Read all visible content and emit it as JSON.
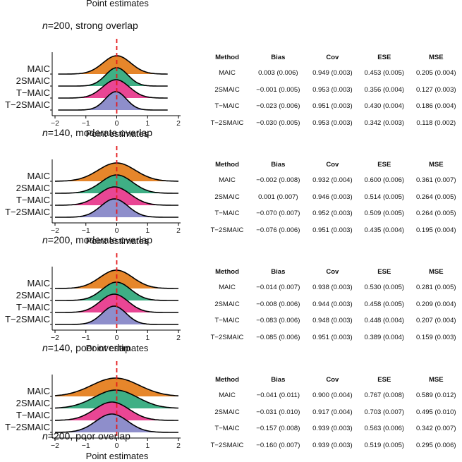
{
  "page": {
    "top_label": "Point estimates",
    "bottom_title_n": "200",
    "bottom_title_rest": ", poor overlap"
  },
  "colors": {
    "MAIC": "#E6862B",
    "2SMAIC": "#3FAF85",
    "T-MAIC": "#E94694",
    "T-2SMAIC": "#8E8ECB",
    "reference": "#E41A1C"
  },
  "table_headers": [
    "Method",
    "Bias",
    "Cov",
    "ESE",
    "MSE"
  ],
  "chart_data": [
    {
      "type": "ridgeline",
      "title_n": "200",
      "title_rest": ", strong overlap",
      "xlabel": "Point estimates",
      "xlim": [
        -2.2,
        2.2
      ],
      "xticks": [
        "−2",
        "−1",
        "0",
        "1",
        "2"
      ],
      "reference_x": 0,
      "methods": [
        "MAIC",
        "2SMAIC",
        "T−MAIC",
        "T−2SMAIC"
      ],
      "series": [
        {
          "name": "MAIC",
          "mean": 0.003,
          "sd": 0.45,
          "range": [
            -1.9,
            1.65
          ]
        },
        {
          "name": "2SMAIC",
          "mean": -0.001,
          "sd": 0.36,
          "range": [
            -1.9,
            1.65
          ]
        },
        {
          "name": "T−MAIC",
          "mean": -0.023,
          "sd": 0.43,
          "range": [
            -1.9,
            1.65
          ]
        },
        {
          "name": "T−2SMAIC",
          "mean": -0.03,
          "sd": 0.34,
          "range": [
            -1.9,
            1.65
          ]
        }
      ],
      "table": [
        [
          "MAIC",
          "0.003 (0.006)",
          "0.949 (0.003)",
          "0.453 (0.005)",
          "0.205 (0.004)"
        ],
        [
          "2SMAIC",
          "−0.001 (0.005)",
          "0.953 (0.003)",
          "0.356 (0.004)",
          "0.127 (0.003)"
        ],
        [
          "T−MAIC",
          "−0.023 (0.006)",
          "0.951 (0.003)",
          "0.430 (0.004)",
          "0.186 (0.004)"
        ],
        [
          "T−2SMAIC",
          "−0.030 (0.005)",
          "0.953 (0.003)",
          "0.342 (0.003)",
          "0.118 (0.002)"
        ]
      ]
    },
    {
      "type": "ridgeline",
      "title_n": "140",
      "title_rest": ", moderate overlap",
      "xlabel": "Point estimates",
      "xlim": [
        -2.2,
        2.2
      ],
      "xticks": [
        "−2",
        "−1",
        "0",
        "1",
        "2"
      ],
      "reference_x": 0,
      "methods": [
        "MAIC",
        "2SMAIC",
        "T−MAIC",
        "T−2SMAIC"
      ],
      "series": [
        {
          "name": "MAIC",
          "mean": -0.002,
          "sd": 0.6,
          "range": [
            -2.0,
            2.0
          ]
        },
        {
          "name": "2SMAIC",
          "mean": 0.001,
          "sd": 0.51,
          "range": [
            -2.0,
            2.0
          ]
        },
        {
          "name": "T−MAIC",
          "mean": -0.07,
          "sd": 0.51,
          "range": [
            -2.0,
            2.0
          ]
        },
        {
          "name": "T−2SMAIC",
          "mean": -0.076,
          "sd": 0.44,
          "range": [
            -2.0,
            2.0
          ]
        }
      ],
      "table": [
        [
          "MAIC",
          "−0.002 (0.008)",
          "0.932 (0.004)",
          "0.600 (0.006)",
          "0.361 (0.007)"
        ],
        [
          "2SMAIC",
          "0.001 (0.007)",
          "0.946 (0.003)",
          "0.514 (0.005)",
          "0.264 (0.005)"
        ],
        [
          "T−MAIC",
          "−0.070 (0.007)",
          "0.952 (0.003)",
          "0.509 (0.005)",
          "0.264 (0.005)"
        ],
        [
          "T−2SMAIC",
          "−0.076 (0.006)",
          "0.951 (0.003)",
          "0.435 (0.004)",
          "0.195 (0.004)"
        ]
      ]
    },
    {
      "type": "ridgeline",
      "title_n": "200",
      "title_rest": ", moderate overlap",
      "xlabel": "Point estimates",
      "xlim": [
        -2.2,
        2.2
      ],
      "xticks": [
        "−2",
        "−1",
        "0",
        "1",
        "2"
      ],
      "reference_x": 0,
      "methods": [
        "MAIC",
        "2SMAIC",
        "T−MAIC",
        "T−2SMAIC"
      ],
      "series": [
        {
          "name": "MAIC",
          "mean": -0.014,
          "sd": 0.53,
          "range": [
            -2.0,
            2.0
          ]
        },
        {
          "name": "2SMAIC",
          "mean": -0.008,
          "sd": 0.46,
          "range": [
            -2.0,
            2.0
          ]
        },
        {
          "name": "T−MAIC",
          "mean": -0.083,
          "sd": 0.45,
          "range": [
            -2.0,
            2.0
          ]
        },
        {
          "name": "T−2SMAIC",
          "mean": -0.085,
          "sd": 0.39,
          "range": [
            -2.0,
            2.0
          ]
        }
      ],
      "table": [
        [
          "MAIC",
          "−0.014 (0.007)",
          "0.938 (0.003)",
          "0.530 (0.005)",
          "0.281 (0.005)"
        ],
        [
          "2SMAIC",
          "−0.008 (0.006)",
          "0.944 (0.003)",
          "0.458 (0.005)",
          "0.209 (0.004)"
        ],
        [
          "T−MAIC",
          "−0.083 (0.006)",
          "0.948 (0.003)",
          "0.448 (0.004)",
          "0.207 (0.004)"
        ],
        [
          "T−2SMAIC",
          "−0.085 (0.006)",
          "0.951 (0.003)",
          "0.389 (0.004)",
          "0.159 (0.003)"
        ]
      ]
    },
    {
      "type": "ridgeline",
      "title_n": "140",
      "title_rest": ", poor overlap",
      "xlabel": "Point estimates",
      "xlim": [
        -2.2,
        2.2
      ],
      "xticks": [
        "−2",
        "−1",
        "0",
        "1",
        "2"
      ],
      "reference_x": 0,
      "methods": [
        "MAIC",
        "2SMAIC",
        "T−MAIC",
        "T−2SMAIC"
      ],
      "series": [
        {
          "name": "MAIC",
          "mean": -0.041,
          "sd": 0.77,
          "range": [
            -2.0,
            2.0
          ]
        },
        {
          "name": "2SMAIC",
          "mean": -0.031,
          "sd": 0.7,
          "range": [
            -2.0,
            2.0
          ]
        },
        {
          "name": "T−MAIC",
          "mean": -0.157,
          "sd": 0.56,
          "range": [
            -2.0,
            2.0
          ]
        },
        {
          "name": "T−2SMAIC",
          "mean": -0.16,
          "sd": 0.52,
          "range": [
            -2.0,
            2.0
          ]
        }
      ],
      "table": [
        [
          "MAIC",
          "−0.041 (0.011)",
          "0.900 (0.004)",
          "0.767 (0.008)",
          "0.589 (0.012)"
        ],
        [
          "2SMAIC",
          "−0.031 (0.010)",
          "0.917 (0.004)",
          "0.703 (0.007)",
          "0.495 (0.010)"
        ],
        [
          "T−MAIC",
          "−0.157 (0.008)",
          "0.939 (0.003)",
          "0.563 (0.006)",
          "0.342 (0.007)"
        ],
        [
          "T−2SMAIC",
          "−0.160 (0.007)",
          "0.939 (0.003)",
          "0.519 (0.005)",
          "0.295 (0.006)"
        ]
      ]
    }
  ]
}
